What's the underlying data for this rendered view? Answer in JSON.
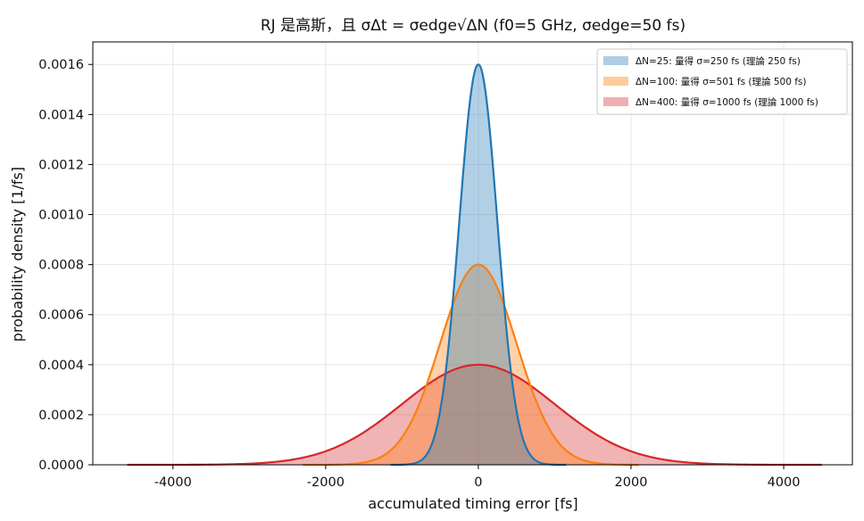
{
  "chart_data": {
    "type": "area",
    "title": "RJ 是高斯，且 σΔt = σedge√ΔN (f0=5 GHz, σedge=50 fs)",
    "xlabel": "accumulated timing error [fs]",
    "ylabel": "probability density [1/fs]",
    "xlim": [
      -5050,
      4900
    ],
    "ylim": [
      0,
      0.00169
    ],
    "xticks": [
      "-4000",
      "-2000",
      "0",
      "2000",
      "4000"
    ],
    "xtick_values": [
      -4000,
      -2000,
      0,
      2000,
      4000
    ],
    "yticks": [
      "0.0000",
      "0.0002",
      "0.0004",
      "0.0006",
      "0.0008",
      "0.0010",
      "0.0012",
      "0.0014",
      "0.0016"
    ],
    "ytick_values": [
      0,
      0.0002,
      0.0004,
      0.0006,
      0.0008,
      0.001,
      0.0012,
      0.0014,
      0.0016
    ],
    "grid": true,
    "legend_position": "upper-right",
    "series": [
      {
        "name": "ΔN=25: 量得 σ=250 fs (理論 250 fs)",
        "sigma_fs": 250,
        "peak_density": 0.0016,
        "x_range": [
          -1150,
          1150
        ],
        "histogram": "shaded",
        "color": "#1f77b4",
        "fill": "#aecde4"
      },
      {
        "name": "ΔN=100: 量得 σ=501 fs (理論 500 fs)",
        "sigma_fs": 501,
        "peak_density": 0.0008,
        "x_range": [
          -2300,
          2100
        ],
        "histogram": "shaded",
        "color": "#ff7f0e",
        "fill": "#ffcc99"
      },
      {
        "name": "ΔN=400: 量得 σ=1000 fs (理論 1000 fs)",
        "sigma_fs": 1000,
        "peak_density": 0.0004,
        "x_range": [
          -4600,
          4500
        ],
        "histogram": "shaded",
        "color": "#d62728",
        "fill": "#f0b0b1"
      }
    ]
  }
}
